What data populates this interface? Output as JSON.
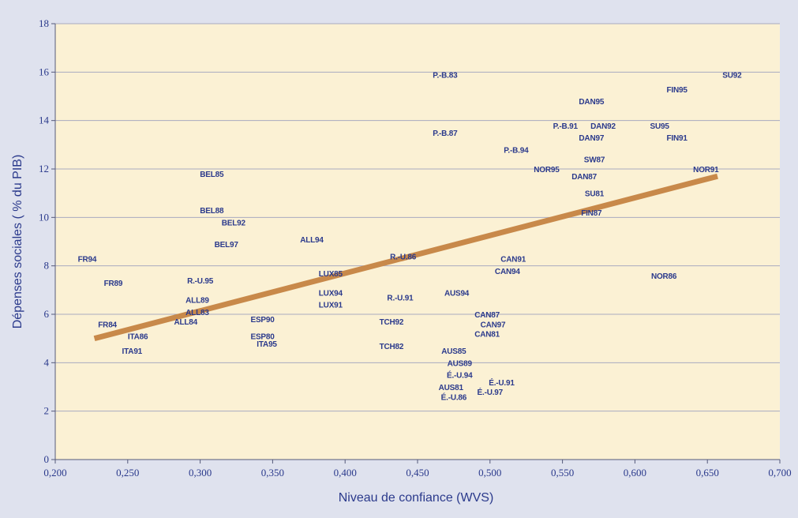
{
  "chart_data": {
    "type": "scatter",
    "xlabel": "Niveau de confiance (WVS)",
    "ylabel": "Dépenses sociales ( % du PIB)",
    "xlim": [
      0.2,
      0.7
    ],
    "ylim": [
      0,
      18
    ],
    "x_ticks": [
      "0,200",
      "0,250",
      "0,300",
      "0,350",
      "0,400",
      "0,450",
      "0,500",
      "0,550",
      "0,600",
      "0,650",
      "0,700"
    ],
    "y_ticks": [
      "0",
      "2",
      "4",
      "6",
      "8",
      "10",
      "12",
      "14",
      "16",
      "18"
    ],
    "grid": true,
    "colors": {
      "plot_bg": "#fbf1d4",
      "page_bg": "#dfe2ee",
      "grid": "#a9aac0",
      "trend": "#c8894a",
      "text": "#2b3a8c"
    },
    "trendline": {
      "x": [
        0.227,
        0.657
      ],
      "y": [
        5.0,
        11.7
      ]
    },
    "points": [
      {
        "label": "FR94",
        "x": 0.222,
        "y": 8.3
      },
      {
        "label": "FR89",
        "x": 0.24,
        "y": 7.3
      },
      {
        "label": "FR84",
        "x": 0.236,
        "y": 5.6
      },
      {
        "label": "ITA86",
        "x": 0.257,
        "y": 5.1
      },
      {
        "label": "ITA91",
        "x": 0.253,
        "y": 4.5
      },
      {
        "label": "R.-U.95",
        "x": 0.3,
        "y": 7.4
      },
      {
        "label": "ALL89",
        "x": 0.298,
        "y": 6.6
      },
      {
        "label": "ALL83",
        "x": 0.298,
        "y": 6.1
      },
      {
        "label": "ALL84",
        "x": 0.29,
        "y": 5.7
      },
      {
        "label": "BEL85",
        "x": 0.308,
        "y": 11.8
      },
      {
        "label": "BEL88",
        "x": 0.308,
        "y": 10.3
      },
      {
        "label": "BEL92",
        "x": 0.323,
        "y": 9.8
      },
      {
        "label": "BEL97",
        "x": 0.318,
        "y": 8.9
      },
      {
        "label": "ESP90",
        "x": 0.343,
        "y": 5.8
      },
      {
        "label": "ESP80",
        "x": 0.343,
        "y": 5.1
      },
      {
        "label": "ITA95",
        "x": 0.346,
        "y": 4.8
      },
      {
        "label": "ALL94",
        "x": 0.377,
        "y": 9.1
      },
      {
        "label": "LUX85",
        "x": 0.39,
        "y": 7.7
      },
      {
        "label": "LUX94",
        "x": 0.39,
        "y": 6.9
      },
      {
        "label": "LUX91",
        "x": 0.39,
        "y": 6.4
      },
      {
        "label": "R.-U.86",
        "x": 0.44,
        "y": 8.4
      },
      {
        "label": "R.-U.91",
        "x": 0.438,
        "y": 6.7
      },
      {
        "label": "TCH92",
        "x": 0.432,
        "y": 5.7
      },
      {
        "label": "TCH82",
        "x": 0.432,
        "y": 4.7
      },
      {
        "label": "P.-B.83",
        "x": 0.469,
        "y": 15.9
      },
      {
        "label": "P.-B.87",
        "x": 0.469,
        "y": 13.5
      },
      {
        "label": "P.-B.94",
        "x": 0.518,
        "y": 12.8
      },
      {
        "label": "AUS94",
        "x": 0.477,
        "y": 6.9
      },
      {
        "label": "AUS85",
        "x": 0.475,
        "y": 4.5
      },
      {
        "label": "AUS89",
        "x": 0.479,
        "y": 4.0
      },
      {
        "label": "É.-U.94",
        "x": 0.479,
        "y": 3.5
      },
      {
        "label": "AUS81",
        "x": 0.473,
        "y": 3.0
      },
      {
        "label": "É.-U.86",
        "x": 0.475,
        "y": 2.6
      },
      {
        "label": "É.-U.91",
        "x": 0.508,
        "y": 3.2
      },
      {
        "label": "É.-U.97",
        "x": 0.5,
        "y": 2.8
      },
      {
        "label": "CAN91",
        "x": 0.516,
        "y": 8.3
      },
      {
        "label": "CAN94",
        "x": 0.512,
        "y": 7.8
      },
      {
        "label": "CAN87",
        "x": 0.498,
        "y": 6.0
      },
      {
        "label": "CAN97",
        "x": 0.502,
        "y": 5.6
      },
      {
        "label": "CAN81",
        "x": 0.498,
        "y": 5.2
      },
      {
        "label": "DAN95",
        "x": 0.57,
        "y": 14.8
      },
      {
        "label": "P.-B.91",
        "x": 0.552,
        "y": 13.8
      },
      {
        "label": "DAN92",
        "x": 0.578,
        "y": 13.8
      },
      {
        "label": "DAN97",
        "x": 0.57,
        "y": 13.3
      },
      {
        "label": "SW87",
        "x": 0.572,
        "y": 12.4
      },
      {
        "label": "NOR95",
        "x": 0.539,
        "y": 12.0
      },
      {
        "label": "DAN87",
        "x": 0.565,
        "y": 11.7
      },
      {
        "label": "SU81",
        "x": 0.572,
        "y": 11.0
      },
      {
        "label": "FIN87",
        "x": 0.57,
        "y": 10.2
      },
      {
        "label": "FIN95",
        "x": 0.629,
        "y": 15.3
      },
      {
        "label": "SU95",
        "x": 0.617,
        "y": 13.8
      },
      {
        "label": "FIN91",
        "x": 0.629,
        "y": 13.3
      },
      {
        "label": "NOR86",
        "x": 0.62,
        "y": 7.6
      },
      {
        "label": "SU92",
        "x": 0.667,
        "y": 15.9
      },
      {
        "label": "NOR91",
        "x": 0.649,
        "y": 12.0
      }
    ]
  }
}
